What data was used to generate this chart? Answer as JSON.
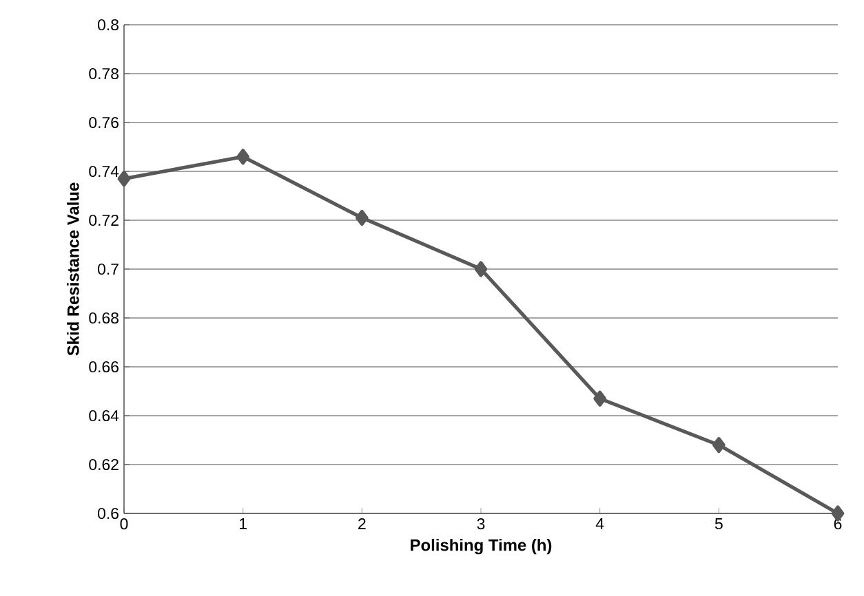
{
  "chart_data": {
    "type": "line",
    "xlabel": "Polishing Time (h)",
    "ylabel": "Skid Resistance Value",
    "x": [
      0,
      1,
      2,
      3,
      4,
      5,
      6
    ],
    "series": [
      {
        "color": "#595959",
        "values": [
          0.737,
          0.746,
          0.721,
          0.7,
          0.647,
          0.628,
          0.6
        ]
      }
    ],
    "xlim": [
      0,
      6
    ],
    "xticks": [
      0,
      1,
      2,
      3,
      4,
      5,
      6
    ],
    "ylim": [
      0.6,
      0.8
    ],
    "yticks": [
      0.6,
      0.62,
      0.64,
      0.66,
      0.68,
      0.7,
      0.72,
      0.74,
      0.76,
      0.78,
      0.8
    ],
    "grid": "y",
    "marker": "diamond",
    "line_style": "solid"
  }
}
